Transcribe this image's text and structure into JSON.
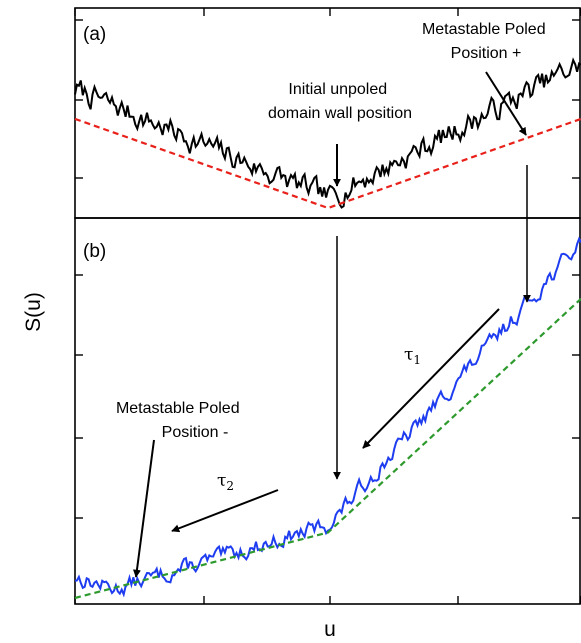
{
  "chart_data": {
    "type": "line",
    "ylabel": "S(u)",
    "xlabel": "u",
    "grid": false,
    "panels": [
      {
        "label": "(a)",
        "series": [
          {
            "id": "roughness",
            "color": "#000000",
            "style": "solid",
            "noise": 0.05,
            "seed": 7,
            "points": [
              [
                0,
                0.62
              ],
              [
                0.5,
                0.07
              ],
              [
                1,
                0.75
              ]
            ]
          },
          {
            "id": "envelope",
            "color": "#e8211b",
            "style": "dashed",
            "points": [
              [
                0,
                0.47
              ],
              [
                0.5,
                0.02
              ],
              [
                1,
                0.47
              ]
            ]
          }
        ],
        "annotations": [
          {
            "id": "initial",
            "lines": [
              "Initial unpoled",
              "domain wall position"
            ]
          },
          {
            "id": "meta-plus",
            "lines": [
              "Metastable Poled",
              "Position +"
            ]
          }
        ]
      },
      {
        "label": "(b)",
        "series": [
          {
            "id": "roughness",
            "color": "#1f3df0",
            "style": "solid",
            "noise": 0.018,
            "seed": 13,
            "points": [
              [
                0,
                0.055
              ],
              [
                0.08,
                0.025
              ],
              [
                0.5,
                0.195
              ],
              [
                1,
                0.95
              ]
            ]
          },
          {
            "id": "envelope",
            "color": "#2e9a2e",
            "style": "dashed",
            "points": [
              [
                0,
                0.0
              ],
              [
                0.5,
                0.175
              ],
              [
                1,
                0.8
              ]
            ]
          }
        ],
        "annotations": [
          {
            "id": "tau1",
            "symbol": "τ",
            "subscript": "1"
          },
          {
            "id": "tau2",
            "symbol": "τ",
            "subscript": "2"
          },
          {
            "id": "meta-minus",
            "lines": [
              "Metastable Poled",
              "Position -"
            ]
          }
        ]
      }
    ]
  }
}
